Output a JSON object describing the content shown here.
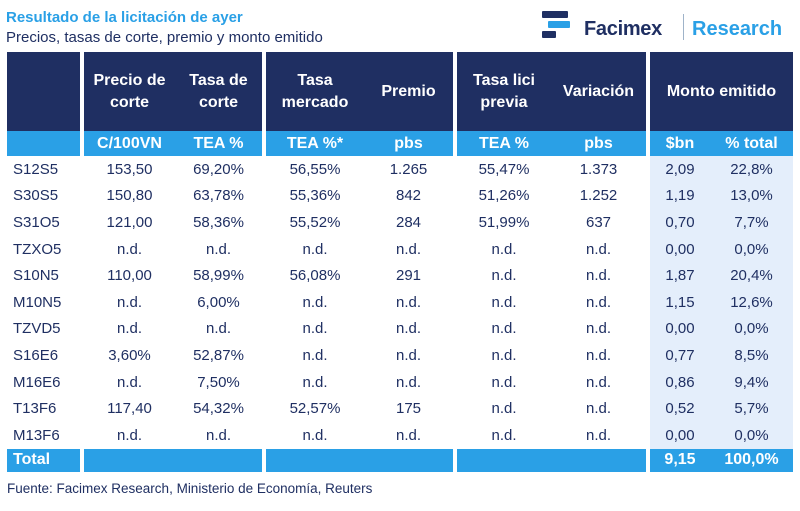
{
  "header": {
    "title": "Resultado de la licitación de ayer",
    "subtitle": "Precios, tasas de corte, premio y monto emitido"
  },
  "brand": {
    "name": "Facimex",
    "section": "Research",
    "colors": {
      "navy": "#1f2f62",
      "blue": "#2aa0e6"
    }
  },
  "table": {
    "columns": [
      {
        "header": "",
        "unit": ""
      },
      {
        "header": "Precio de corte",
        "unit": "C/100VN"
      },
      {
        "header": "Tasa de corte",
        "unit": "TEA %"
      },
      {
        "header": "Tasa mercado",
        "unit": "TEA %*"
      },
      {
        "header": "Premio",
        "unit": "pbs"
      },
      {
        "header": "Tasa lici previa",
        "unit": "TEA %"
      },
      {
        "header": "Variación",
        "unit": "pbs"
      },
      {
        "header": "Monto emitido",
        "unit": "$bn"
      },
      {
        "header": "",
        "unit": "% total"
      }
    ],
    "rows": [
      [
        "S12S5",
        "153,50",
        "69,20%",
        "56,55%",
        "1.265",
        "55,47%",
        "1.373",
        "2,09",
        "22,8%"
      ],
      [
        "S30S5",
        "150,80",
        "63,78%",
        "55,36%",
        "842",
        "51,26%",
        "1.252",
        "1,19",
        "13,0%"
      ],
      [
        "S31O5",
        "121,00",
        "58,36%",
        "55,52%",
        "284",
        "51,99%",
        "637",
        "0,70",
        "7,7%"
      ],
      [
        "TZXO5",
        "n.d.",
        "n.d.",
        "n.d.",
        "n.d.",
        "n.d.",
        "n.d.",
        "0,00",
        "0,0%"
      ],
      [
        "S10N5",
        "110,00",
        "58,99%",
        "56,08%",
        "291",
        "n.d.",
        "n.d.",
        "1,87",
        "20,4%"
      ],
      [
        "M10N5",
        "n.d.",
        "6,00%",
        "n.d.",
        "n.d.",
        "n.d.",
        "n.d.",
        "1,15",
        "12,6%"
      ],
      [
        "TZVD5",
        "n.d.",
        "n.d.",
        "n.d.",
        "n.d.",
        "n.d.",
        "n.d.",
        "0,00",
        "0,0%"
      ],
      [
        "S16E6",
        "3,60%",
        "52,87%",
        "n.d.",
        "n.d.",
        "n.d.",
        "n.d.",
        "0,77",
        "8,5%"
      ],
      [
        "M16E6",
        "n.d.",
        "7,50%",
        "n.d.",
        "n.d.",
        "n.d.",
        "n.d.",
        "0,86",
        "9,4%"
      ],
      [
        "T13F6",
        "117,40",
        "54,32%",
        "52,57%",
        "175",
        "n.d.",
        "n.d.",
        "0,52",
        "5,7%"
      ],
      [
        "M13F6",
        "n.d.",
        "n.d.",
        "n.d.",
        "n.d.",
        "n.d.",
        "n.d.",
        "0,00",
        "0,0%"
      ]
    ],
    "total": {
      "label": "Total",
      "amount": "9,15",
      "share": "100,0%"
    }
  },
  "footer": {
    "source": "Fuente: Facimex Research, Ministerio de Economía, Reuters"
  }
}
